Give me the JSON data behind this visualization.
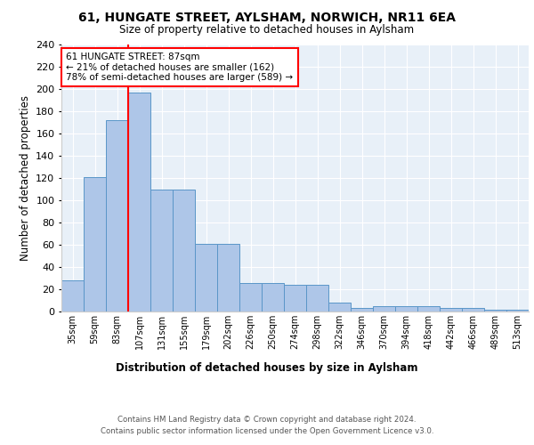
{
  "title1": "61, HUNGATE STREET, AYLSHAM, NORWICH, NR11 6EA",
  "title2": "Size of property relative to detached houses in Aylsham",
  "xlabel": "Distribution of detached houses by size in Aylsham",
  "ylabel": "Number of detached properties",
  "categories": [
    "35sqm",
    "59sqm",
    "83sqm",
    "107sqm",
    "131sqm",
    "155sqm",
    "179sqm",
    "202sqm",
    "226sqm",
    "250sqm",
    "274sqm",
    "298sqm",
    "322sqm",
    "346sqm",
    "370sqm",
    "394sqm",
    "418sqm",
    "442sqm",
    "466sqm",
    "489sqm",
    "513sqm"
  ],
  "values": [
    28,
    121,
    172,
    197,
    110,
    110,
    61,
    61,
    26,
    26,
    24,
    24,
    8,
    3,
    5,
    5,
    5,
    3,
    3,
    2,
    2
  ],
  "bar_color": "#aec6e8",
  "bar_edge_color": "#5a96c8",
  "red_line_x": 2.5,
  "annotation_text": "61 HUNGATE STREET: 87sqm\n← 21% of detached houses are smaller (162)\n78% of semi-detached houses are larger (589) →",
  "annotation_box_color": "white",
  "annotation_box_edge": "red",
  "footer1": "Contains HM Land Registry data © Crown copyright and database right 2024.",
  "footer2": "Contains public sector information licensed under the Open Government Licence v3.0.",
  "plot_bg_color": "#e8f0f8",
  "ylim": [
    0,
    240
  ],
  "yticks": [
    0,
    20,
    40,
    60,
    80,
    100,
    120,
    140,
    160,
    180,
    200,
    220,
    240
  ]
}
